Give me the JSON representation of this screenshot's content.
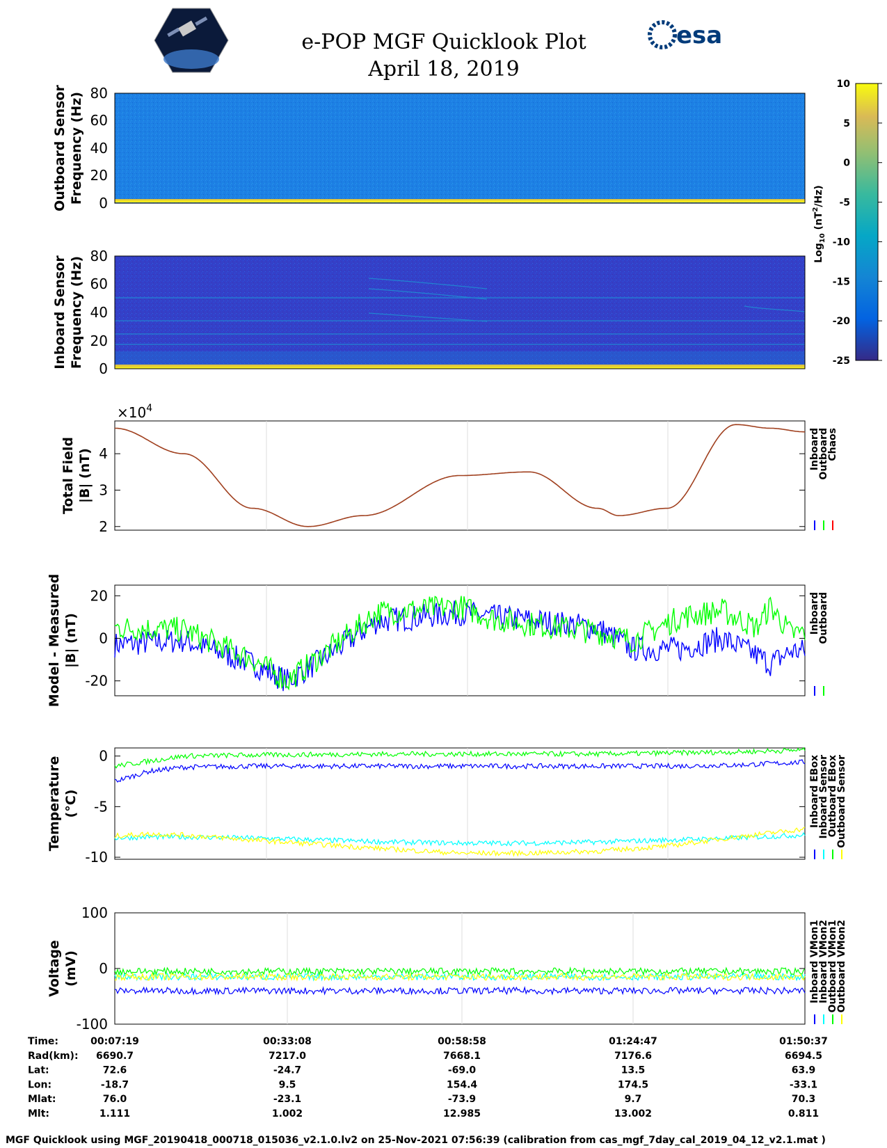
{
  "title_line1": "e-POP MGF Quicklook Plot",
  "title_line2": "April 18, 2019",
  "logos": {
    "left": "cassiope-mission-logo",
    "right_text": "esa"
  },
  "colors": {
    "blue": "#0000ff",
    "green": "#00ff00",
    "red": "#ff0000",
    "cyan": "#00ffff",
    "yellow": "#ffff00",
    "brown": "#a0401f",
    "spec_out": "#1c7fe6",
    "spec_in": "#3342cc"
  },
  "colorbar": {
    "ticks": [
      "10",
      "5",
      "0",
      "-5",
      "-10",
      "-15",
      "-20",
      "-25"
    ],
    "label_pre": "Log",
    "label_sub": "10",
    "label_mid": " (nT",
    "label_sup": "2",
    "label_post": "/Hz)",
    "range": [
      -25,
      10
    ],
    "colormap": "parula"
  },
  "panels": {
    "outboard": {
      "ylabel1": "Outboard Sensor",
      "ylabel2": "Frequency (Hz)",
      "yticks": [
        "80",
        "60",
        "40",
        "20",
        "0"
      ]
    },
    "inboard": {
      "ylabel1": "Inboard Sensor",
      "ylabel2": "Frequency (Hz)",
      "yticks": [
        "80",
        "60",
        "40",
        "20",
        "0"
      ]
    },
    "total": {
      "ylabel1": "Total Field",
      "ylabel2": "|B| (nT)",
      "yticks": [
        "4",
        "3",
        "2"
      ],
      "exponent_base": "×10",
      "exponent_pow": "4",
      "legend": [
        "Inboard",
        "Outboard",
        "Chaos"
      ]
    },
    "model": {
      "ylabel1": "Model - Measured",
      "ylabel2": "|B| (nT)",
      "yticks": [
        "20",
        "0",
        "-20"
      ],
      "legend": [
        "Inboard",
        "Outboard"
      ]
    },
    "temp": {
      "ylabel1": "Temperature",
      "ylabel2": "(°C)",
      "yticks": [
        "0",
        "-5",
        "-10"
      ],
      "legend": [
        "Inboard EBox",
        "Inboard Sensor",
        "Outboard EBox",
        "Outboard Sensor"
      ]
    },
    "volt": {
      "ylabel1": "Voltage",
      "ylabel2": "(mV)",
      "yticks": [
        "100",
        "0",
        "-100"
      ],
      "legend": [
        "Inboard VMon1",
        "Inboard VMon2",
        "Outboard VMon1",
        "Outboard VMon2"
      ]
    }
  },
  "table": {
    "rows": [
      {
        "label": "Time:",
        "values": [
          "00:07:19",
          "00:33:08",
          "00:58:58",
          "01:24:47",
          "01:50:37"
        ]
      },
      {
        "label": "Rad(km):",
        "values": [
          "6690.7",
          "7217.0",
          "7668.1",
          "7176.6",
          "6694.5"
        ]
      },
      {
        "label": "Lat:",
        "values": [
          "72.6",
          "-24.7",
          "-69.0",
          "13.5",
          "63.9"
        ]
      },
      {
        "label": "Lon:",
        "values": [
          "-18.7",
          "9.5",
          "154.4",
          "174.5",
          "-33.1"
        ]
      },
      {
        "label": "Mlat:",
        "values": [
          "76.0",
          "-23.1",
          "-73.9",
          "9.7",
          "70.3"
        ]
      },
      {
        "label": "Mlt:",
        "values": [
          "1.111",
          "1.002",
          "12.985",
          "13.002",
          "0.811"
        ]
      }
    ]
  },
  "footer": "MGF Quicklook using MGF_20190418_000718_015036_v2.1.0.lv2 on 25-Nov-2021 07:56:39 (calibration from cas_mgf_7day_cal_2019_04_12_v2.1.mat )",
  "chart_data": [
    {
      "type": "heatmap",
      "name_ref": "outboard",
      "xlim": [
        0,
        1
      ],
      "ylim": [
        0,
        80
      ],
      "colorbar_range": [
        -25,
        10
      ]
    },
    {
      "type": "heatmap",
      "name_ref": "inboard",
      "xlim": [
        0,
        1
      ],
      "ylim": [
        0,
        80
      ],
      "colorbar_range": [
        -25,
        10
      ]
    },
    {
      "type": "line",
      "name_ref": "total",
      "ylim": [
        1.9,
        4.9
      ],
      "scale": 10000,
      "x": [
        0,
        0.1,
        0.2,
        0.28,
        0.36,
        0.5,
        0.6,
        0.7,
        0.73,
        0.8,
        0.9,
        0.95,
        1
      ],
      "series": [
        {
          "name": "Chaos",
          "values": [
            4.7,
            4.0,
            2.5,
            2.0,
            2.3,
            3.4,
            3.5,
            2.5,
            2.3,
            2.5,
            4.8,
            4.7,
            4.6
          ]
        }
      ]
    },
    {
      "type": "line",
      "name_ref": "model",
      "ylim": [
        -27,
        25
      ],
      "x": [
        0,
        0.1,
        0.2,
        0.25,
        0.3,
        0.38,
        0.5,
        0.55,
        0.62,
        0.7,
        0.75,
        0.82,
        0.88,
        0.93,
        0.95,
        0.98,
        1
      ],
      "series": [
        {
          "name": "Inboard",
          "values": [
            -3,
            -1,
            -12,
            -20,
            -10,
            8,
            12,
            10,
            8,
            5,
            -5,
            -5,
            0,
            -8,
            -12,
            -6,
            -6
          ]
        },
        {
          "name": "Outboard",
          "values": [
            5,
            4,
            -10,
            -20,
            -8,
            12,
            15,
            9,
            6,
            3,
            -1,
            10,
            13,
            5,
            15,
            2,
            3
          ]
        }
      ]
    },
    {
      "type": "line",
      "name_ref": "temp",
      "ylim": [
        -10.2,
        0.8
      ],
      "x": [
        0,
        0.05,
        0.1,
        0.2,
        0.4,
        0.5,
        0.6,
        0.7,
        0.8,
        0.9,
        1
      ],
      "series": [
        {
          "name": "Inboard EBox",
          "values": [
            -2.5,
            -1.5,
            -1.1,
            -1.0,
            -1.0,
            -1.0,
            -1.0,
            -1.0,
            -1.0,
            -0.9,
            -0.6
          ]
        },
        {
          "name": "Inboard Sensor",
          "values": [
            -8.1,
            -8.0,
            -8.0,
            -8.1,
            -8.5,
            -8.6,
            -8.6,
            -8.5,
            -8.3,
            -8.1,
            -7.8
          ]
        },
        {
          "name": "Outboard EBox",
          "values": [
            -1.0,
            -0.5,
            0.0,
            0.1,
            0.2,
            0.2,
            0.2,
            0.2,
            0.3,
            0.4,
            0.6
          ]
        },
        {
          "name": "Outboard Sensor",
          "values": [
            -7.9,
            -7.7,
            -7.8,
            -8.3,
            -9.2,
            -9.6,
            -9.6,
            -9.4,
            -8.9,
            -8.0,
            -7.2
          ]
        }
      ]
    },
    {
      "type": "line",
      "name_ref": "volt",
      "ylim": [
        -100,
        100
      ],
      "x": [
        0,
        0.5,
        1
      ],
      "series": [
        {
          "name": "Inboard VMon1",
          "values": [
            -40,
            -40,
            -40
          ]
        },
        {
          "name": "Inboard VMon2",
          "values": [
            -15,
            -15,
            -15
          ]
        },
        {
          "name": "Outboard VMon1",
          "values": [
            -5,
            -5,
            -5
          ]
        },
        {
          "name": "Outboard VMon2",
          "values": [
            -15,
            -15,
            -15
          ]
        }
      ]
    }
  ]
}
